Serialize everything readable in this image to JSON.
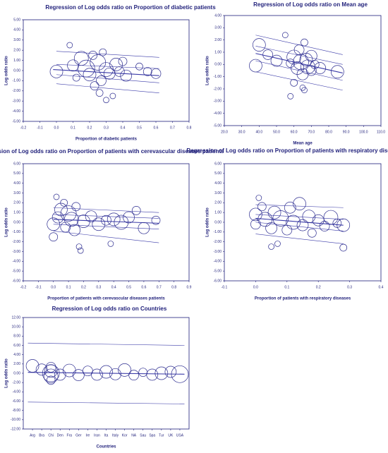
{
  "chart_data": [
    {
      "type": "scatter",
      "title": "Regression of Log odds ratio on Proportion of diabetic patients",
      "x_label": "Proportion of diabetic patients",
      "y_label": "Log odds ratio",
      "xlim": [
        -0.2,
        0.8
      ],
      "ylim": [
        -5,
        5
      ],
      "xticks": [
        -0.2,
        -0.1,
        {
          "value": 0,
          "label": "0.0"
        },
        0.1,
        0.2,
        0.3,
        0.4,
        0.5,
        0.6,
        0.7,
        0.8
      ],
      "yticks": [
        {
          "value": -5,
          "label": "-5.00"
        },
        {
          "value": -4,
          "label": "-4.00"
        },
        {
          "value": -3,
          "label": "-3.00"
        },
        {
          "value": -2,
          "label": "-2.00"
        },
        {
          "value": -1,
          "label": "-1.00"
        },
        {
          "value": 0,
          "label": "0.00"
        },
        {
          "value": 1,
          "label": "1.00"
        },
        {
          "value": 2,
          "label": "2.00"
        },
        {
          "value": 3,
          "label": "3.00"
        },
        {
          "value": 4,
          "label": "4.00"
        },
        {
          "value": 5,
          "label": "5.00"
        }
      ],
      "color": "#2b2b8f",
      "x": [
        0.0,
        0.08,
        0.1,
        0.12,
        0.15,
        0.18,
        0.2,
        0.22,
        0.25,
        0.27,
        0.28,
        0.3,
        0.32,
        0.34,
        0.3,
        0.36,
        0.38,
        0.4,
        0.42,
        0.26,
        0.23,
        0.55,
        0.6,
        0.5
      ],
      "y": [
        -0.1,
        2.5,
        0.5,
        -0.7,
        1.2,
        0.2,
        -0.4,
        1.5,
        0.8,
        -1.0,
        1.8,
        0.1,
        -0.3,
        -2.5,
        -2.9,
        0.6,
        -0.1,
        0.9,
        -0.5,
        -2.2,
        -1.5,
        -0.1,
        -0.3,
        0.4
      ],
      "size": [
        9,
        4,
        8,
        5,
        10,
        12,
        9,
        6,
        11,
        7,
        5,
        10,
        8,
        4,
        4,
        9,
        7,
        6,
        8,
        5,
        6,
        6,
        7,
        5
      ],
      "lines": [
        {
          "x": [
            -0.02,
            0.62
          ],
          "y": [
            0.1,
            -0.5
          ]
        },
        {
          "x": [
            0.0,
            0.62
          ],
          "y": [
            1.9,
            1.3
          ]
        },
        {
          "x": [
            0.0,
            0.62
          ],
          "y": [
            -1.3,
            -2.2
          ]
        },
        {
          "x": [
            0.0,
            0.62
          ],
          "y": [
            0.6,
            0.2
          ]
        },
        {
          "x": [
            0.0,
            0.62
          ],
          "y": [
            -0.4,
            -1.2
          ]
        }
      ]
    },
    {
      "type": "scatter",
      "title": "Regression of Log odds ratio on Mean age",
      "x_label": "Mean age",
      "y_label": "Log odds ratio",
      "xlim": [
        20,
        110
      ],
      "ylim": [
        -5,
        4
      ],
      "xticks": [
        {
          "value": 20,
          "label": "20.0"
        },
        {
          "value": 30,
          "label": "30.0"
        },
        {
          "value": 40,
          "label": "40.0"
        },
        {
          "value": 50,
          "label": "50.0"
        },
        {
          "value": 60,
          "label": "60.0"
        },
        {
          "value": 70,
          "label": "70.0"
        },
        {
          "value": 80,
          "label": "80.0"
        },
        {
          "value": 90,
          "label": "90.0"
        },
        {
          "value": 100,
          "label": "100.0"
        },
        {
          "value": 110,
          "label": "110.0"
        }
      ],
      "yticks": [
        {
          "value": -5,
          "label": "-5.00"
        },
        {
          "value": -4,
          "label": "-4.00"
        },
        {
          "value": -3,
          "label": "-3.00"
        },
        {
          "value": -2,
          "label": "-2.00"
        },
        {
          "value": -1,
          "label": "-1.00"
        },
        {
          "value": 0,
          "label": "0.00"
        },
        {
          "value": 1,
          "label": "1.00"
        },
        {
          "value": 2,
          "label": "2.00"
        },
        {
          "value": 3,
          "label": "3.00"
        },
        {
          "value": 4,
          "label": "4.00"
        }
      ],
      "color": "#2b2b8f",
      "x": [
        38,
        40,
        45,
        50,
        55,
        58,
        60,
        60,
        62,
        63,
        64,
        65,
        65,
        66,
        67,
        68,
        70,
        70,
        72,
        75,
        85,
        66,
        58
      ],
      "y": [
        -0.1,
        1.6,
        0.8,
        0.3,
        2.4,
        0.1,
        -1.5,
        0.6,
        -0.3,
        1.2,
        0.2,
        -0.8,
        -1.9,
        1.8,
        0.4,
        -0.2,
        0.7,
        -0.5,
        0.0,
        -0.3,
        -0.6,
        -2.1,
        -2.6
      ],
      "size": [
        9,
        9,
        7,
        8,
        4,
        6,
        5,
        10,
        9,
        7,
        11,
        8,
        4,
        5,
        9,
        10,
        8,
        7,
        6,
        8,
        9,
        4,
        4
      ],
      "lines": [
        {
          "x": [
            38,
            88
          ],
          "y": [
            0.9,
            -0.7
          ]
        },
        {
          "x": [
            38,
            88
          ],
          "y": [
            2.4,
            0.8
          ]
        },
        {
          "x": [
            38,
            88
          ],
          "y": [
            -0.6,
            -2.1
          ]
        },
        {
          "x": [
            38,
            88
          ],
          "y": [
            1.5,
            0.0
          ]
        },
        {
          "x": [
            38,
            88
          ],
          "y": [
            0.3,
            -1.3
          ]
        }
      ]
    },
    {
      "type": "scatter",
      "title": "Regression of Log odds ratio on Proportion of patients with cerevascular diseases patients",
      "x_label": "Proportion of patients with cerevascular diseases patients",
      "y_label": "Log odds ratio",
      "xlim": [
        -0.2,
        0.9
      ],
      "ylim": [
        -6,
        6
      ],
      "xticks": [
        -0.2,
        -0.1,
        {
          "value": 0,
          "label": "0.0"
        },
        0.1,
        0.2,
        0.3,
        0.4,
        0.5,
        0.6,
        0.7,
        0.8,
        0.9
      ],
      "yticks": [
        {
          "value": -6,
          "label": "-6.00"
        },
        {
          "value": -5,
          "label": "-5.00"
        },
        {
          "value": -4,
          "label": "-4.00"
        },
        {
          "value": -3,
          "label": "-3.00"
        },
        {
          "value": -2,
          "label": "-2.00"
        },
        {
          "value": -1,
          "label": "-1.00"
        },
        {
          "value": 0,
          "label": "0.00"
        },
        {
          "value": 1,
          "label": "1.00"
        },
        {
          "value": 2,
          "label": "2.00"
        },
        {
          "value": 3,
          "label": "3.00"
        },
        {
          "value": 4,
          "label": "4.00"
        },
        {
          "value": 5,
          "label": "5.00"
        },
        {
          "value": 6,
          "label": "6.00"
        }
      ],
      "color": "#2b2b8f",
      "x": [
        0.0,
        0.0,
        0.02,
        0.03,
        0.05,
        0.07,
        0.08,
        0.1,
        0.12,
        0.14,
        0.15,
        0.17,
        0.18,
        0.2,
        0.25,
        0.3,
        0.35,
        0.38,
        0.4,
        0.45,
        0.5,
        0.55,
        0.6,
        0.68
      ],
      "y": [
        -0.2,
        -1.5,
        2.6,
        0.5,
        1.3,
        2.0,
        -0.5,
        0.9,
        0.3,
        -0.8,
        1.6,
        -2.5,
        -2.9,
        0.1,
        0.6,
        -0.2,
        0.2,
        -2.2,
        0.3,
        0.0,
        0.5,
        1.2,
        -0.6,
        0.2
      ],
      "size": [
        9,
        6,
        4,
        8,
        9,
        5,
        7,
        11,
        10,
        8,
        6,
        4,
        4,
        9,
        8,
        9,
        7,
        4,
        9,
        10,
        8,
        6,
        8,
        6
      ],
      "lines": [
        {
          "x": [
            0.0,
            0.7
          ],
          "y": [
            0.3,
            -0.1
          ]
        },
        {
          "x": [
            0.0,
            0.7
          ],
          "y": [
            1.5,
            1.0
          ]
        },
        {
          "x": [
            0.0,
            0.7
          ],
          "y": [
            -0.9,
            -2.1
          ]
        },
        {
          "x": [
            0.0,
            0.7
          ],
          "y": [
            0.8,
            0.4
          ]
        },
        {
          "x": [
            0.0,
            0.7
          ],
          "y": [
            -0.2,
            -0.7
          ]
        }
      ]
    },
    {
      "type": "scatter",
      "title": "Regression of Log odds ratio on Proportion of patients with respiratory diseases",
      "x_label": "Proportion of patients with respiratory diseases",
      "y_label": "Log odds ratio",
      "xlim": [
        -0.1,
        0.4
      ],
      "ylim": [
        -6,
        6
      ],
      "xticks": [
        -0.1,
        {
          "value": 0,
          "label": "0.0"
        },
        0.1,
        0.2,
        0.3,
        0.4
      ],
      "yticks": [
        {
          "value": -6,
          "label": "-6.00"
        },
        {
          "value": -5,
          "label": "-5.00"
        },
        {
          "value": -4,
          "label": "-4.00"
        },
        {
          "value": -3,
          "label": "-3.00"
        },
        {
          "value": -2,
          "label": "-2.00"
        },
        {
          "value": -1,
          "label": "-1.00"
        },
        {
          "value": 0,
          "label": "0.00"
        },
        {
          "value": 1,
          "label": "1.00"
        },
        {
          "value": 2,
          "label": "2.00"
        },
        {
          "value": 3,
          "label": "3.00"
        },
        {
          "value": 4,
          "label": "4.00"
        },
        {
          "value": 5,
          "label": "5.00"
        },
        {
          "value": 6,
          "label": "6.00"
        }
      ],
      "color": "#2b2b8f",
      "x": [
        0.0,
        0.0,
        0.01,
        0.02,
        0.03,
        0.05,
        0.06,
        0.07,
        0.08,
        0.1,
        0.11,
        0.12,
        0.14,
        0.15,
        0.17,
        0.18,
        0.2,
        0.22,
        0.24,
        0.26,
        0.28,
        0.28,
        0.05
      ],
      "y": [
        0.8,
        -0.2,
        2.5,
        1.6,
        0.3,
        -0.6,
        1.0,
        -2.2,
        0.4,
        -0.8,
        1.5,
        0.0,
        1.9,
        -0.3,
        0.6,
        -1.1,
        0.2,
        -0.4,
        0.5,
        -0.1,
        -2.6,
        -0.3,
        -2.5
      ],
      "size": [
        9,
        7,
        4,
        6,
        10,
        8,
        9,
        4,
        11,
        7,
        8,
        10,
        9,
        8,
        9,
        6,
        8,
        7,
        10,
        6,
        5,
        9,
        4
      ],
      "lines": [
        {
          "x": [
            0.0,
            0.28
          ],
          "y": [
            0.4,
            -0.3
          ]
        },
        {
          "x": [
            0.0,
            0.28
          ],
          "y": [
            1.8,
            1.5
          ]
        },
        {
          "x": [
            0.0,
            0.28
          ],
          "y": [
            -1.2,
            -2.2
          ]
        },
        {
          "x": [
            0.0,
            0.28
          ],
          "y": [
            0.8,
            0.3
          ]
        },
        {
          "x": [
            0.0,
            0.28
          ],
          "y": [
            0.0,
            -0.9
          ]
        }
      ]
    },
    {
      "type": "scatter",
      "title": "Regression of Log odds ratio on Countries",
      "x_label": "Countries",
      "y_label": "Log odds ratio",
      "xlim": [
        0,
        18
      ],
      "ylim": [
        -12,
        12
      ],
      "xticks": [
        {
          "value": 1,
          "label": "Arg"
        },
        {
          "value": 2,
          "label": "Bra"
        },
        {
          "value": 3,
          "label": "Chi"
        },
        {
          "value": 4,
          "label": "Den"
        },
        {
          "value": 5,
          "label": "Fra"
        },
        {
          "value": 6,
          "label": "Ger"
        },
        {
          "value": 7,
          "label": "Ire"
        },
        {
          "value": 8,
          "label": "Iran"
        },
        {
          "value": 9,
          "label": "Ita"
        },
        {
          "value": 10,
          "label": "Italy"
        },
        {
          "value": 11,
          "label": "Kor"
        },
        {
          "value": 12,
          "label": "NA"
        },
        {
          "value": 13,
          "label": "Sau"
        },
        {
          "value": 14,
          "label": "Spa"
        },
        {
          "value": 15,
          "label": "Tur"
        },
        {
          "value": 16,
          "label": "UK"
        },
        {
          "value": 17,
          "label": "USA"
        }
      ],
      "yticks": [
        {
          "value": -12,
          "label": "-12.00"
        },
        {
          "value": -10,
          "label": "-10.00"
        },
        {
          "value": -8,
          "label": "-8.00"
        },
        {
          "value": -6,
          "label": "-6.00"
        },
        {
          "value": -4,
          "label": "-4.00"
        },
        {
          "value": -2,
          "label": "-2.00"
        },
        {
          "value": 0,
          "label": "0.00"
        },
        {
          "value": 2,
          "label": "2.00"
        },
        {
          "value": 4,
          "label": "4.00"
        },
        {
          "value": 6,
          "label": "6.00"
        },
        {
          "value": 8,
          "label": "8.00"
        },
        {
          "value": 10,
          "label": "10.00"
        },
        {
          "value": 12,
          "label": "12.00"
        }
      ],
      "color": "#2b2b8f",
      "x": [
        1,
        2,
        3,
        3,
        3,
        3,
        3,
        4,
        5,
        6,
        7,
        8,
        9,
        10,
        11,
        12,
        13,
        14,
        15,
        16,
        17
      ],
      "y": [
        1.6,
        0.8,
        0.0,
        -1.5,
        1.3,
        -0.6,
        0.5,
        -0.3,
        0.6,
        -0.4,
        0.5,
        -0.3,
        0.3,
        -0.2,
        0.7,
        -0.4,
        0.2,
        -0.3,
        0.0,
        0.3,
        -0.2
      ],
      "size": [
        9,
        8,
        12,
        6,
        7,
        10,
        9,
        8,
        9,
        8,
        7,
        8,
        9,
        8,
        9,
        7,
        6,
        8,
        9,
        8,
        12
      ],
      "lines": [
        {
          "x": [
            0.5,
            17.5
          ],
          "y": [
            0.2,
            -0.2
          ]
        },
        {
          "x": [
            0.5,
            17.5
          ],
          "y": [
            6.5,
            6.0
          ]
        },
        {
          "x": [
            0.5,
            17.5
          ],
          "y": [
            -6.2,
            -6.6
          ]
        }
      ]
    }
  ]
}
